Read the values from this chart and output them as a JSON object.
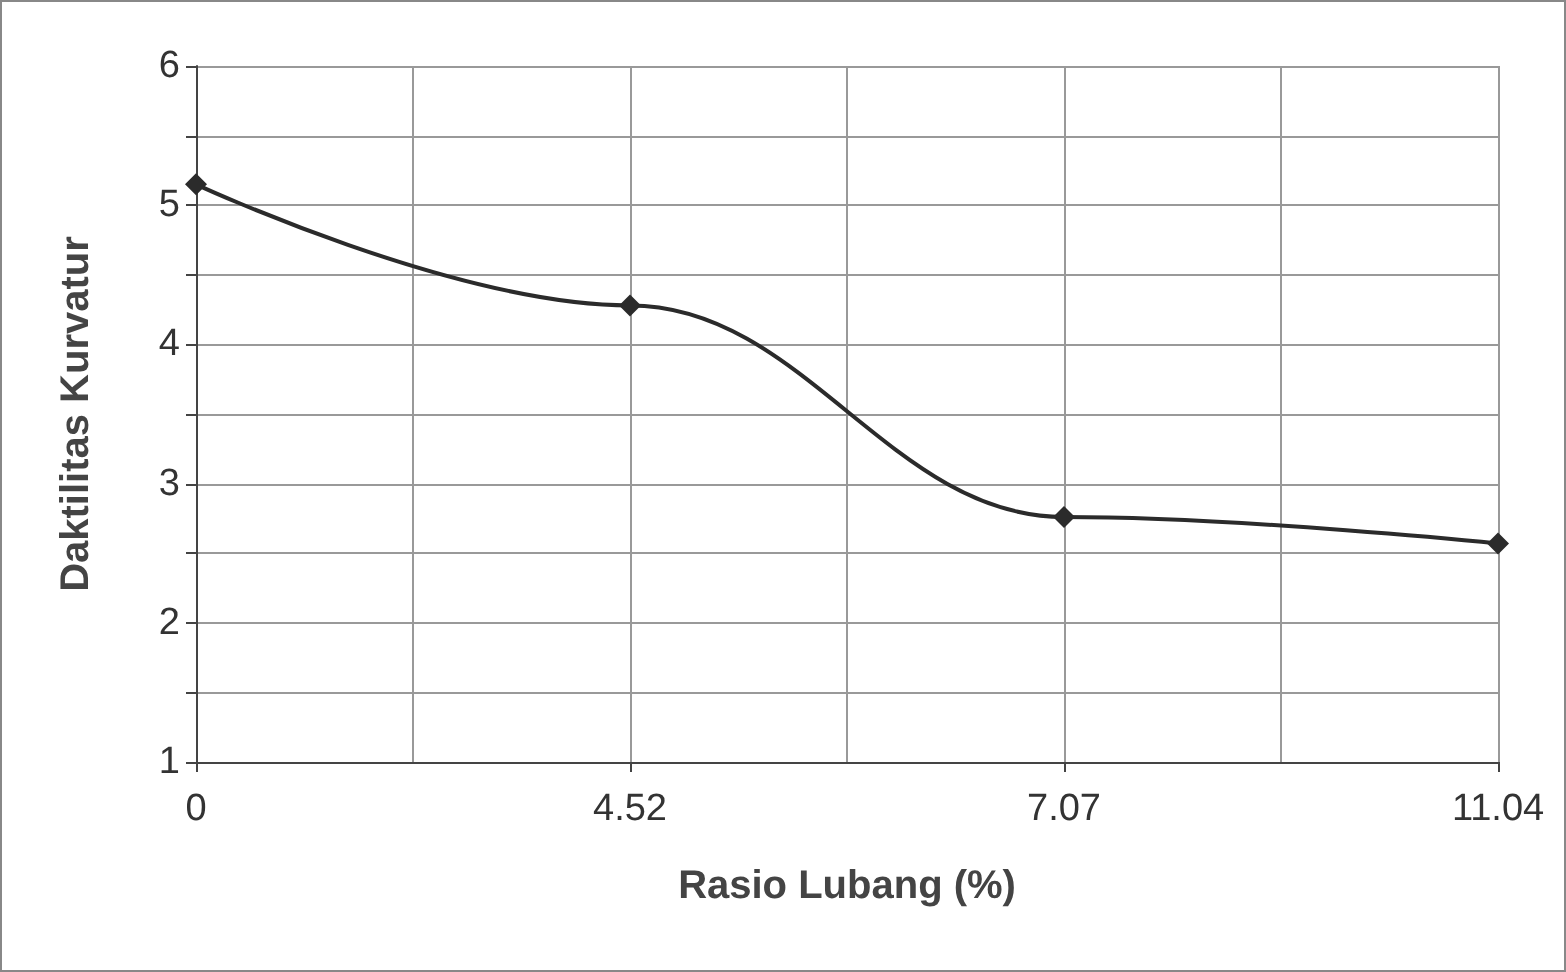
{
  "chart_data": {
    "type": "line",
    "xlabel": "Rasio Lubang (%)",
    "ylabel": "Daktilitas Kurvatur",
    "categories": [
      "0",
      "4.52",
      "7.07",
      "11.04"
    ],
    "series": [
      {
        "color": "#2b2b2b",
        "values": [
          5.15,
          4.28,
          2.76,
          2.57
        ]
      }
    ],
    "ylim": [
      1,
      6
    ],
    "yticks": [
      1,
      {
        "value": 1.5,
        "label": null
      },
      2,
      {
        "value": 2.5,
        "label": null
      },
      3,
      {
        "value": 3.5,
        "label": null
      },
      4,
      {
        "value": 4.5,
        "label": null
      },
      5,
      {
        "value": 5.5,
        "label": null
      },
      6
    ],
    "grid": true,
    "marker": "diamond",
    "line_style": "solid"
  }
}
